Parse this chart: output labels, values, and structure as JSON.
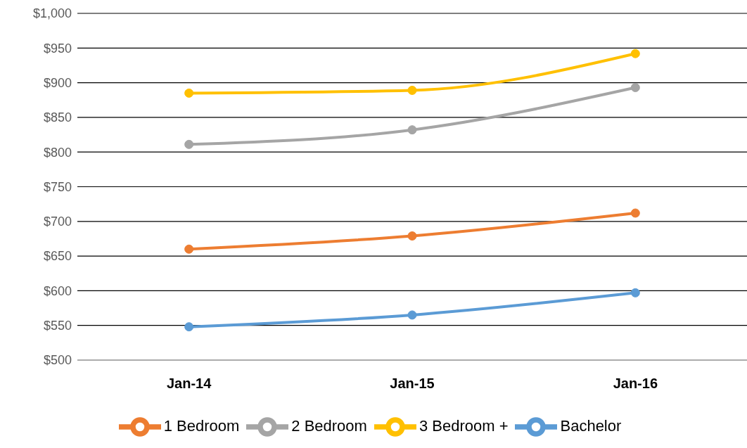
{
  "chart_data": {
    "type": "line",
    "categories": [
      "Jan-14",
      "Jan-15",
      "Jan-16"
    ],
    "series": [
      {
        "name": "Bachelor",
        "color": "#5b9bd5",
        "values": [
          548,
          565,
          597
        ]
      },
      {
        "name": "1 Bedroom",
        "color": "#ed7d31",
        "values": [
          660,
          679,
          712
        ]
      },
      {
        "name": "2 Bedroom",
        "color": "#a5a5a5",
        "values": [
          811,
          832,
          893
        ]
      },
      {
        "name": "3 Bedroom +",
        "color": "#ffc000",
        "values": [
          885,
          889,
          942
        ]
      }
    ],
    "ylim": [
      500,
      1000
    ],
    "yticks": [
      {
        "value": 500,
        "label": "$500"
      },
      {
        "value": 550,
        "label": "$550"
      },
      {
        "value": 600,
        "label": "$600"
      },
      {
        "value": 650,
        "label": "$650"
      },
      {
        "value": 700,
        "label": "$700"
      },
      {
        "value": 750,
        "label": "$750"
      },
      {
        "value": 800,
        "label": "$800"
      },
      {
        "value": 850,
        "label": "$850"
      },
      {
        "value": 900,
        "label": "$900"
      },
      {
        "value": 950,
        "label": "$950"
      },
      {
        "value": 1000,
        "label": "$1,000"
      }
    ],
    "grid": "y",
    "legend": "bottom",
    "marker": "circle",
    "line_style": "solid"
  }
}
